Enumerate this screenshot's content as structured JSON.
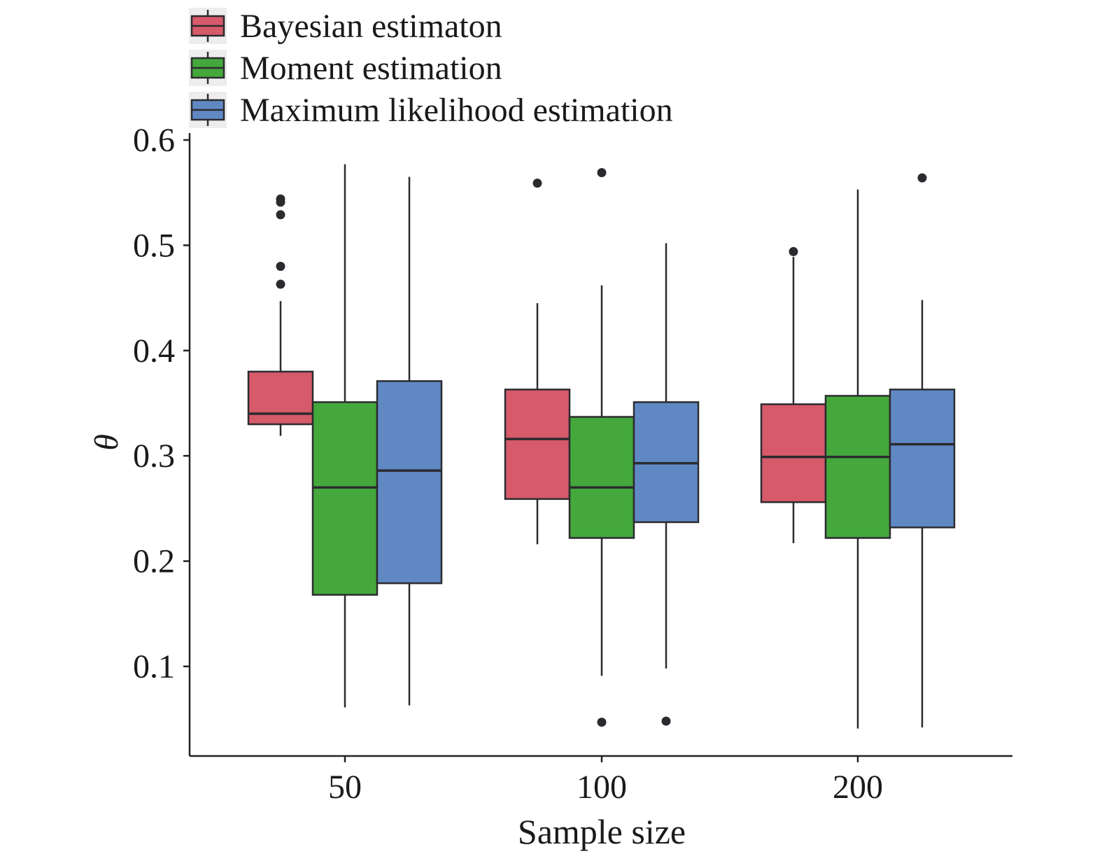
{
  "chart_data": {
    "type": "boxplot",
    "title": "",
    "xlabel": "Sample size",
    "ylabel": "θ",
    "ylim": [
      0.015,
      0.6
    ],
    "yticks": [
      "0.1",
      "0.2",
      "0.3",
      "0.4",
      "0.5",
      "0.6"
    ],
    "categories": [
      "50",
      "100",
      "200"
    ],
    "legend_position": "top-left",
    "grid": false,
    "series": [
      {
        "name": "Bayesian estimaton",
        "color": "#d65a6a",
        "boxes": [
          {
            "whisker_low": 0.319,
            "q1": 0.33,
            "median": 0.34,
            "q3": 0.38,
            "whisker_high": 0.447,
            "outliers": [
              0.544,
              0.541,
              0.529,
              0.48,
              0.463
            ]
          },
          {
            "whisker_low": 0.216,
            "q1": 0.259,
            "median": 0.316,
            "q3": 0.363,
            "whisker_high": 0.445,
            "outliers": [
              0.559
            ]
          },
          {
            "whisker_low": 0.217,
            "q1": 0.256,
            "median": 0.299,
            "q3": 0.349,
            "whisker_high": 0.489,
            "outliers": [
              0.494
            ]
          }
        ]
      },
      {
        "name": "Moment estimation",
        "color": "#44a83c",
        "boxes": [
          {
            "whisker_low": 0.061,
            "q1": 0.168,
            "median": 0.27,
            "q3": 0.351,
            "whisker_high": 0.577,
            "outliers": []
          },
          {
            "whisker_low": 0.091,
            "q1": 0.222,
            "median": 0.27,
            "q3": 0.337,
            "whisker_high": 0.462,
            "outliers": [
              0.569,
              0.047
            ]
          },
          {
            "whisker_low": 0.041,
            "q1": 0.222,
            "median": 0.299,
            "q3": 0.357,
            "whisker_high": 0.553,
            "outliers": []
          }
        ]
      },
      {
        "name": "Maximum likelihood estimation",
        "color": "#6089c4",
        "boxes": [
          {
            "whisker_low": 0.063,
            "q1": 0.179,
            "median": 0.286,
            "q3": 0.371,
            "whisker_high": 0.565,
            "outliers": []
          },
          {
            "whisker_low": 0.098,
            "q1": 0.237,
            "median": 0.293,
            "q3": 0.351,
            "whisker_high": 0.502,
            "outliers": [
              0.048
            ]
          },
          {
            "whisker_low": 0.042,
            "q1": 0.232,
            "median": 0.311,
            "q3": 0.363,
            "whisker_high": 0.448,
            "outliers": [
              0.564
            ]
          }
        ]
      }
    ]
  }
}
